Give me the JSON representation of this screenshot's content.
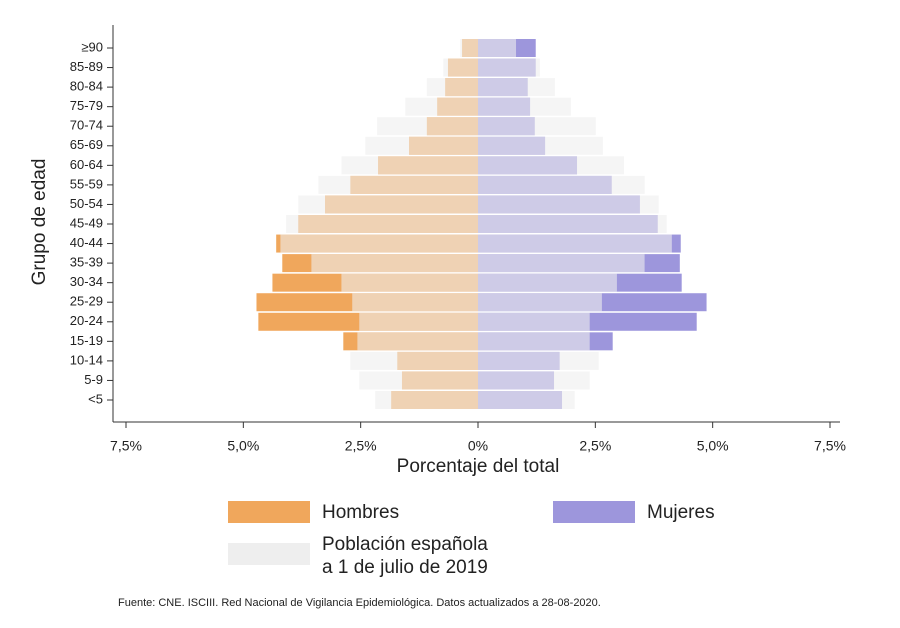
{
  "chart_data": {
    "type": "pyramid",
    "x_label": "Porcentaje del total",
    "y_label": "Grupo de edad",
    "source": "Fuente: CNE. ISCIII. Red Nacional de Vigilancia Epidemiológica. Datos actualizados a 28-08-2020.",
    "categories": [
      "≥90",
      "85-89",
      "80-84",
      "75-79",
      "70-74",
      "65-69",
      "60-64",
      "55-59",
      "50-54",
      "45-49",
      "40-44",
      "35-39",
      "30-34",
      "25-29",
      "20-24",
      "15-19",
      "10-14",
      "5-9",
      "<5"
    ],
    "xlim": [
      -7.5,
      7.5
    ],
    "xticks": [
      {
        "value": -7.5,
        "label": "7,5%"
      },
      {
        "value": -5,
        "label": "5,0%"
      },
      {
        "value": -2.5,
        "label": "2,5%"
      },
      {
        "value": 0,
        "label": "0%"
      },
      {
        "value": 2.5,
        "label": "2,5%"
      },
      {
        "value": 5,
        "label": "5,0%"
      },
      {
        "value": 7.5,
        "label": "7,5%"
      }
    ],
    "series": [
      {
        "name": "Hombres",
        "color": "#f0a75c",
        "values": [
          -0.34,
          -0.64,
          -0.7,
          -0.87,
          -1.09,
          -1.47,
          -2.13,
          -2.72,
          -3.26,
          -3.83,
          -4.3,
          -4.17,
          -4.38,
          -4.72,
          -4.68,
          -2.87,
          -1.72,
          -1.62,
          -1.85
        ]
      },
      {
        "name": "Mujeres",
        "color": "#9d96dc",
        "values": [
          1.23,
          1.23,
          1.06,
          1.11,
          1.21,
          1.43,
          2.11,
          2.85,
          3.45,
          3.83,
          4.32,
          4.3,
          4.34,
          4.87,
          4.66,
          2.87,
          1.74,
          1.62,
          1.79
        ]
      },
      {
        "name": [
          "Población española",
          "a 1 de julio de 2019"
        ],
        "color": "#eeeeee",
        "left_values": [
          -0.38,
          -0.74,
          -1.09,
          -1.55,
          -2.15,
          -2.4,
          -2.91,
          -3.4,
          -3.83,
          -4.09,
          -4.21,
          -3.55,
          -2.91,
          -2.68,
          -2.53,
          -2.57,
          -2.72,
          -2.53,
          -2.19
        ],
        "right_values": [
          0.81,
          1.32,
          1.64,
          1.98,
          2.51,
          2.66,
          3.11,
          3.55,
          3.85,
          4.02,
          4.13,
          3.55,
          2.96,
          2.64,
          2.38,
          2.38,
          2.57,
          2.38,
          2.06
        ]
      }
    ]
  }
}
